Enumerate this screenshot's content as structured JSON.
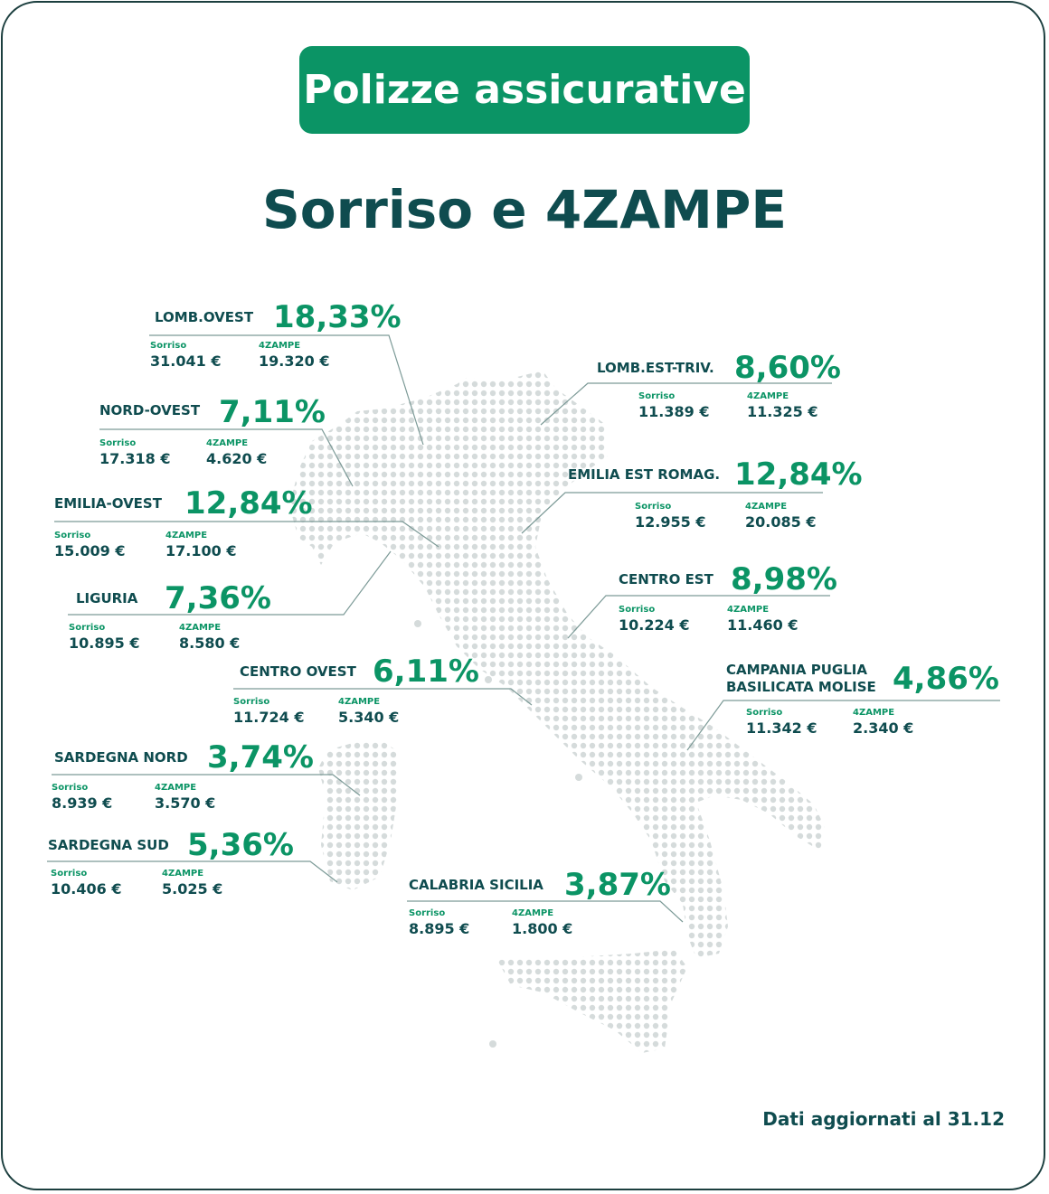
{
  "header": {
    "badge": "Polizze assicurative",
    "title": "Sorriso e 4ZAMPE"
  },
  "labels": {
    "sorriso": "Sorriso",
    "zampe": "4ZAMPE"
  },
  "colors": {
    "brand_green": "#0b9465",
    "dark_teal": "#0f4c4f",
    "map_dots": "#d5dbdb",
    "frame": "#1c3f3f"
  },
  "regions": [
    {
      "name": "LOMB.OVEST",
      "percent": "18,33%",
      "sorriso": "31.041 €",
      "zampe": "19.320 €"
    },
    {
      "name": "LOMB.EST-TRIV.",
      "percent": "8,60%",
      "sorriso": "11.389 €",
      "zampe": "11.325 €"
    },
    {
      "name": "NORD-OVEST",
      "percent": "7,11%",
      "sorriso": "17.318 €",
      "zampe": "4.620 €"
    },
    {
      "name": "EMILIA EST ROMAG.",
      "percent": "12,84%",
      "sorriso": "12.955 €",
      "zampe": "20.085 €"
    },
    {
      "name": "EMILIA-OVEST",
      "percent": "12,84%",
      "sorriso": "15.009 €",
      "zampe": "17.100 €"
    },
    {
      "name": "CENTRO EST",
      "percent": "8,98%",
      "sorriso": "10.224 €",
      "zampe": "11.460 €"
    },
    {
      "name": "LIGURIA",
      "percent": "7,36%",
      "sorriso": "10.895 €",
      "zampe": "8.580 €"
    },
    {
      "name": "CENTRO OVEST",
      "percent": "6,11%",
      "sorriso": "11.724 €",
      "zampe": "5.340 €"
    },
    {
      "name": "CAMPANIA PUGLIA BASILICATA MOLISE",
      "name_line1": "CAMPANIA PUGLIA",
      "name_line2": "BASILICATA MOLISE",
      "percent": "4,86%",
      "sorriso": "11.342 €",
      "zampe": "2.340 €"
    },
    {
      "name": "SARDEGNA NORD",
      "percent": "3,74%",
      "sorriso": "8.939 €",
      "zampe": "3.570 €"
    },
    {
      "name": "SARDEGNA SUD",
      "percent": "5,36%",
      "sorriso": "10.406 €",
      "zampe": "5.025 €"
    },
    {
      "name": "CALABRIA SICILIA",
      "percent": "3,87%",
      "sorriso": "8.895 €",
      "zampe": "1.800 €"
    }
  ],
  "footer": "Dati aggiornati al 31.12"
}
